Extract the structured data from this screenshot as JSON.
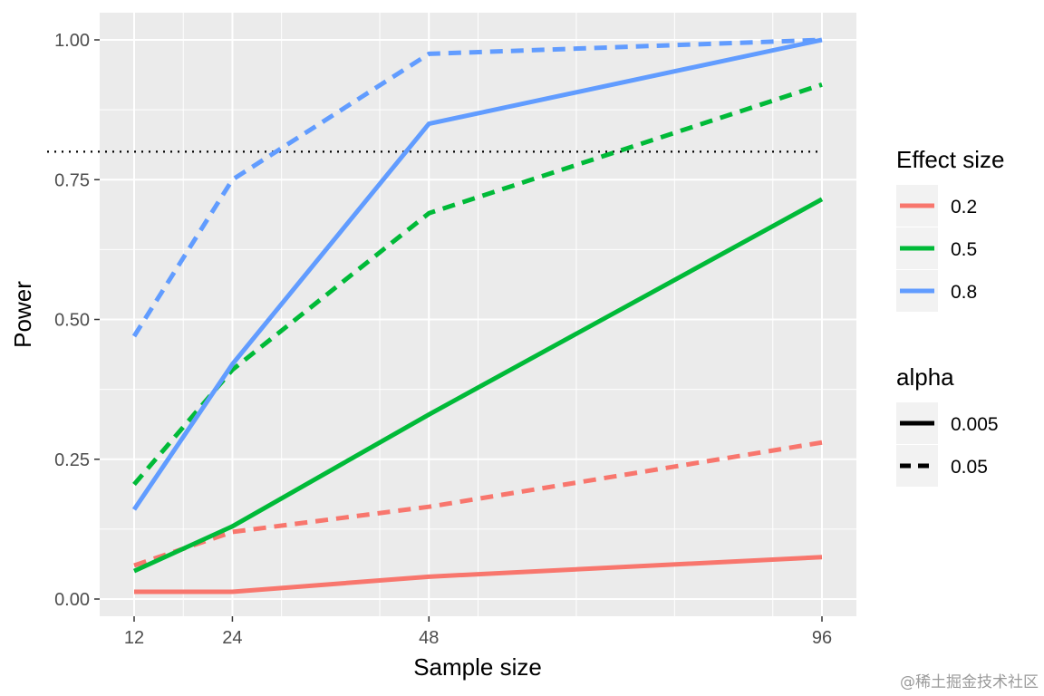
{
  "chart_data": {
    "type": "line",
    "xlabel": "Sample size",
    "ylabel": "Power",
    "x_ticks": [
      12,
      24,
      48,
      96
    ],
    "x_tick_labels": [
      "12",
      "24",
      "48",
      "96"
    ],
    "y_ticks": [
      0,
      0.25,
      0.5,
      0.75,
      1.0
    ],
    "y_tick_labels": [
      "0.00",
      "0.25",
      "0.50",
      "0.75",
      "1.00"
    ],
    "xlim": [
      12,
      96
    ],
    "ylim": [
      0,
      1
    ],
    "grid": true,
    "reference_line": {
      "y": 0.8,
      "style": "dotted",
      "color": "#000000"
    },
    "legend": {
      "placement": "right",
      "color_title": "Effect size",
      "linetype_title": "alpha",
      "colors": [
        {
          "label": "0.2",
          "color": "#F8766D"
        },
        {
          "label": "0.5",
          "color": "#00BA38"
        },
        {
          "label": "0.8",
          "color": "#619CFF"
        }
      ],
      "linetypes": [
        {
          "label": "0.005",
          "style": "solid"
        },
        {
          "label": "0.05",
          "style": "dashed"
        }
      ]
    },
    "series": [
      {
        "effect": "0.2",
        "alpha": "0.005",
        "color": "#F8766D",
        "style": "solid",
        "x": [
          12,
          24,
          48,
          96
        ],
        "y": [
          0.013,
          0.013,
          0.04,
          0.075
        ]
      },
      {
        "effect": "0.2",
        "alpha": "0.05",
        "color": "#F8766D",
        "style": "dashed",
        "x": [
          12,
          24,
          48,
          96
        ],
        "y": [
          0.06,
          0.12,
          0.165,
          0.28
        ]
      },
      {
        "effect": "0.5",
        "alpha": "0.005",
        "color": "#00BA38",
        "style": "solid",
        "x": [
          12,
          24,
          48,
          96
        ],
        "y": [
          0.05,
          0.13,
          0.33,
          0.715
        ]
      },
      {
        "effect": "0.5",
        "alpha": "0.05",
        "color": "#00BA38",
        "style": "dashed",
        "x": [
          12,
          24,
          48,
          96
        ],
        "y": [
          0.205,
          0.41,
          0.69,
          0.92
        ]
      },
      {
        "effect": "0.8",
        "alpha": "0.005",
        "color": "#619CFF",
        "style": "solid",
        "x": [
          12,
          24,
          48,
          96
        ],
        "y": [
          0.16,
          0.42,
          0.85,
          1.0
        ]
      },
      {
        "effect": "0.8",
        "alpha": "0.05",
        "color": "#619CFF",
        "style": "dashed",
        "x": [
          12,
          24,
          48,
          96
        ],
        "y": [
          0.47,
          0.75,
          0.975,
          1.0
        ]
      }
    ]
  },
  "watermark": "@稀土掘金技术社区"
}
